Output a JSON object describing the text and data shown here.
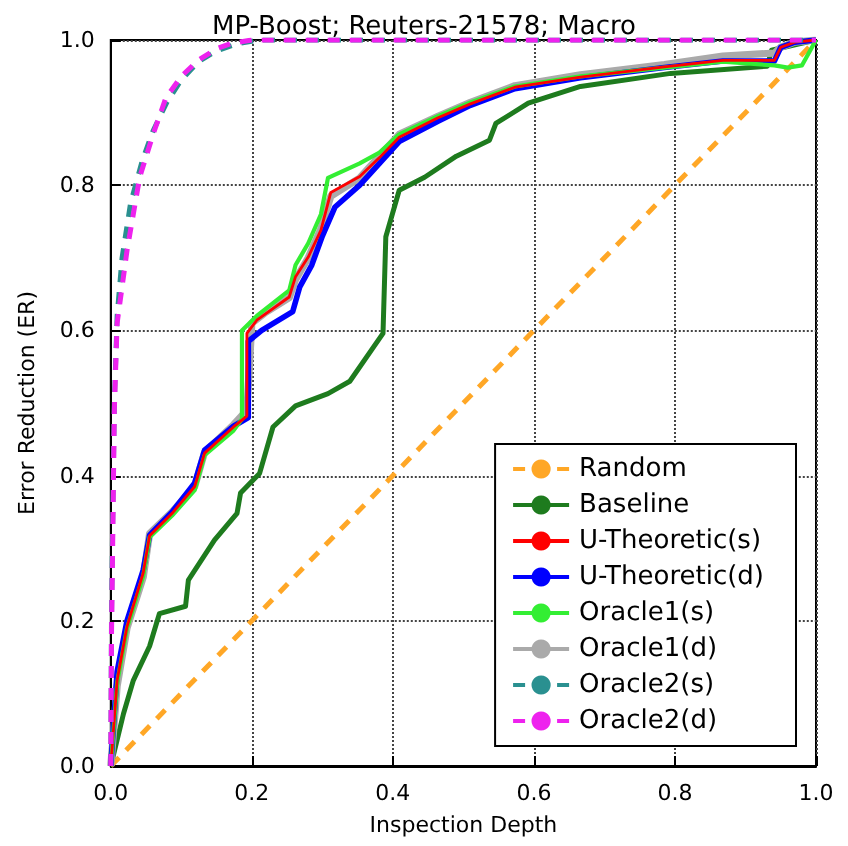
{
  "chart_data": {
    "type": "line",
    "title": "MP-Boost; Reuters-21578; Macro",
    "xlabel": "Inspection Depth",
    "ylabel": "Error Reduction (ER)",
    "xlim": [
      0,
      1
    ],
    "ylim": [
      0,
      1
    ],
    "xticks": [
      {
        "value": 0,
        "label": "0.0"
      },
      {
        "value": 0.2,
        "label": "0.2"
      },
      {
        "value": 0.4,
        "label": "0.4"
      },
      {
        "value": 0.6,
        "label": "0.6"
      },
      {
        "value": 0.8,
        "label": "0.8"
      },
      {
        "value": 1,
        "label": "1.0"
      }
    ],
    "yticks": [
      {
        "value": 0,
        "label": "0.0"
      },
      {
        "value": 0.2,
        "label": "0.2"
      },
      {
        "value": 0.4,
        "label": "0.4"
      },
      {
        "value": 0.6,
        "label": "0.6"
      },
      {
        "value": 0.8,
        "label": "0.8"
      },
      {
        "value": 1,
        "label": "1.0"
      }
    ],
    "grid": true,
    "legend": "bottom right",
    "marker": "none",
    "series": [
      {
        "name": "Random",
        "color": "#ffa726",
        "line_style": "dashed",
        "x": [
          0,
          1
        ],
        "values": [
          0,
          1
        ]
      },
      {
        "name": "Baseline",
        "color": "#1e7b1e",
        "line_style": "solid",
        "x": [
          0,
          0.018,
          0.032,
          0.055,
          0.069,
          0.106,
          0.11,
          0.147,
          0.179,
          0.184,
          0.211,
          0.23,
          0.262,
          0.308,
          0.339,
          0.386,
          0.39,
          0.409,
          0.445,
          0.49,
          0.537,
          0.546,
          0.592,
          0.666,
          0.794,
          0.931,
          0.937,
          0.955,
          0.978,
          1
        ],
        "values": [
          0,
          0.072,
          0.118,
          0.165,
          0.21,
          0.22,
          0.256,
          0.311,
          0.348,
          0.376,
          0.403,
          0.467,
          0.496,
          0.513,
          0.53,
          0.596,
          0.729,
          0.793,
          0.811,
          0.84,
          0.862,
          0.885,
          0.913,
          0.936,
          0.954,
          0.964,
          0.986,
          0.99,
          0.995,
          1
        ]
      },
      {
        "name": "U-Theoretic(s)",
        "color": "#ff0000",
        "line_style": "solid",
        "x": [
          0,
          0.009,
          0.023,
          0.046,
          0.055,
          0.087,
          0.119,
          0.133,
          0.174,
          0.193,
          0.193,
          0.207,
          0.253,
          0.262,
          0.28,
          0.298,
          0.312,
          0.353,
          0.381,
          0.409,
          0.464,
          0.51,
          0.573,
          0.666,
          0.785,
          0.868,
          0.941,
          0.95,
          0.97,
          1
        ],
        "values": [
          0,
          0.118,
          0.192,
          0.266,
          0.317,
          0.348,
          0.385,
          0.431,
          0.467,
          0.482,
          0.596,
          0.614,
          0.646,
          0.674,
          0.701,
          0.738,
          0.79,
          0.812,
          0.838,
          0.866,
          0.893,
          0.912,
          0.935,
          0.949,
          0.963,
          0.972,
          0.972,
          0.99,
          0.997,
          1
        ]
      },
      {
        "name": "U-Theoretic(d)",
        "color": "#0000ff",
        "line_style": "solid",
        "x": [
          0,
          0.009,
          0.023,
          0.046,
          0.055,
          0.087,
          0.119,
          0.133,
          0.174,
          0.195,
          0.195,
          0.214,
          0.258,
          0.268,
          0.285,
          0.3,
          0.318,
          0.353,
          0.381,
          0.409,
          0.464,
          0.51,
          0.573,
          0.666,
          0.785,
          0.868,
          0.941,
          0.95,
          0.97,
          1
        ],
        "values": [
          0,
          0.13,
          0.2,
          0.27,
          0.318,
          0.35,
          0.39,
          0.435,
          0.468,
          0.48,
          0.585,
          0.6,
          0.626,
          0.66,
          0.69,
          0.73,
          0.77,
          0.8,
          0.83,
          0.86,
          0.888,
          0.91,
          0.933,
          0.948,
          0.962,
          0.971,
          0.971,
          0.99,
          0.997,
          1
        ]
      },
      {
        "name": "Oracle1(s)",
        "color": "#33ee33",
        "line_style": "solid",
        "x": [
          0,
          0.009,
          0.023,
          0.046,
          0.055,
          0.087,
          0.119,
          0.133,
          0.174,
          0.186,
          0.186,
          0.207,
          0.253,
          0.262,
          0.28,
          0.298,
          0.308,
          0.353,
          0.381,
          0.409,
          0.464,
          0.51,
          0.573,
          0.666,
          0.785,
          0.868,
          0.941,
          0.96,
          0.98,
          1
        ],
        "values": [
          0,
          0.115,
          0.19,
          0.262,
          0.315,
          0.345,
          0.38,
          0.428,
          0.462,
          0.478,
          0.6,
          0.62,
          0.655,
          0.69,
          0.72,
          0.76,
          0.81,
          0.83,
          0.845,
          0.87,
          0.895,
          0.914,
          0.936,
          0.95,
          0.962,
          0.97,
          0.965,
          0.962,
          0.965,
          1
        ]
      },
      {
        "name": "Oracle1(d)",
        "color": "#aaaaaa",
        "line_style": "solid",
        "x": [
          0,
          0.009,
          0.023,
          0.046,
          0.055,
          0.087,
          0.119,
          0.133,
          0.174,
          0.193,
          0.2,
          0.22,
          0.253,
          0.262,
          0.28,
          0.298,
          0.312,
          0.353,
          0.381,
          0.409,
          0.464,
          0.51,
          0.573,
          0.666,
          0.785,
          0.868,
          0.941,
          0.95,
          0.97,
          1
        ],
        "values": [
          0,
          0.11,
          0.19,
          0.26,
          0.32,
          0.35,
          0.385,
          0.432,
          0.47,
          0.49,
          0.61,
          0.625,
          0.645,
          0.67,
          0.7,
          0.74,
          0.785,
          0.81,
          0.84,
          0.87,
          0.895,
          0.914,
          0.937,
          0.952,
          0.966,
          0.978,
          0.982,
          0.99,
          0.997,
          1
        ]
      },
      {
        "name": "Oracle2(s)",
        "color": "#2a9090",
        "line_style": "dashed",
        "x": [
          0,
          0.001,
          0.003,
          0.005,
          0.009,
          0.016,
          0.028,
          0.045,
          0.06,
          0.08,
          0.1,
          0.124,
          0.15,
          0.18,
          0.21,
          1
        ],
        "values": [
          0,
          0.2,
          0.36,
          0.5,
          0.62,
          0.7,
          0.775,
          0.835,
          0.875,
          0.915,
          0.945,
          0.97,
          0.985,
          0.995,
          1,
          1
        ]
      },
      {
        "name": "Oracle2(d)",
        "color": "#ee22ee",
        "line_style": "dashed",
        "x": [
          0,
          0.001,
          0.003,
          0.005,
          0.009,
          0.023,
          0.041,
          0.06,
          0.078,
          0.1,
          0.124,
          0.15,
          0.17,
          0.2,
          1
        ],
        "values": [
          0,
          0.18,
          0.33,
          0.49,
          0.61,
          0.71,
          0.811,
          0.87,
          0.92,
          0.95,
          0.972,
          0.988,
          0.995,
          1,
          1
        ]
      }
    ]
  }
}
